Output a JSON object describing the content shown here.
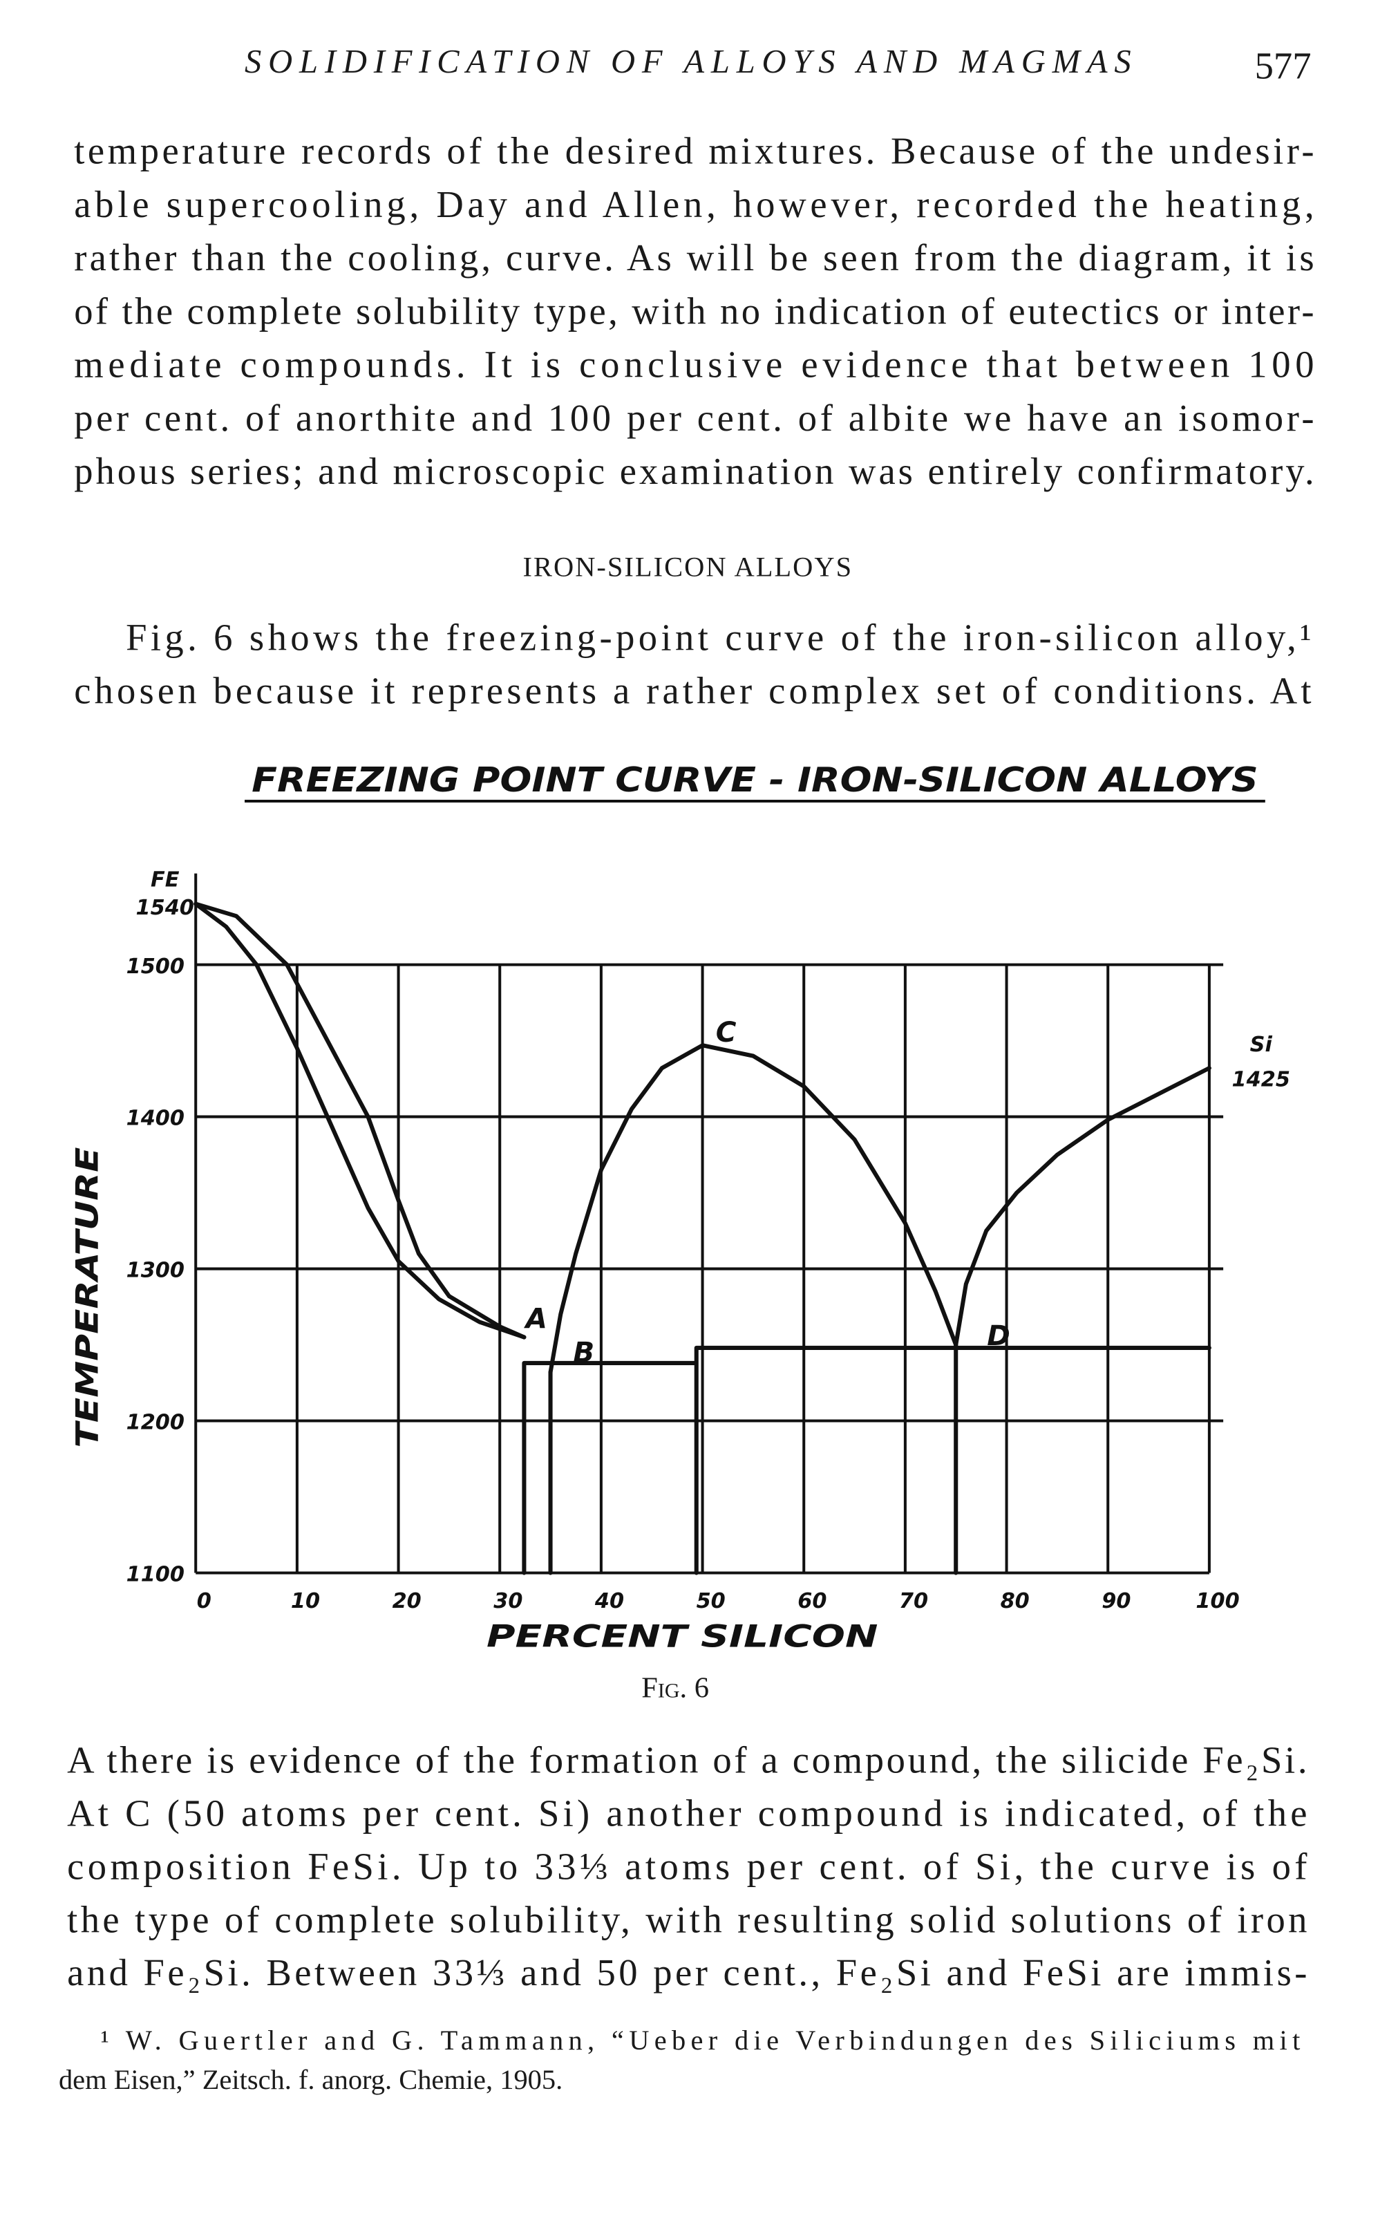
{
  "header": {
    "running_title": "SOLIDIFICATION OF ALLOYS AND MAGMAS",
    "page_number": "577"
  },
  "paragraph_before": {
    "lines": [
      "temperature records of the desired mixtures. Because of the undesir-",
      "able supercooling, Day and Allen, however, recorded the heating,",
      "rather than the cooling, curve. As will be seen from the diagram, it is",
      "of the complete solubility type, with no indication of eutectics or inter-",
      "mediate compounds. It is conclusive evidence that between 100",
      "per cent. of anorthite and 100 per cent. of albite we have an isomor-",
      "phous series; and microscopic examination was entirely confirmatory."
    ]
  },
  "section_heading": "IRON-SILICON ALLOYS",
  "paragraph_intro": {
    "lines": [
      "Fig. 6 shows the freezing-point curve of the iron-silicon alloy,¹",
      "chosen because it represents a rather complex set of conditions. At"
    ]
  },
  "chart_data": {
    "type": "line",
    "title": "FREEZING POINT CURVE - IRON-SILICON ALLOYS",
    "xlabel": "PERCENT SILICON",
    "ylabel": "TEMPERATURE",
    "xlim": [
      0,
      100
    ],
    "ylim": [
      1100,
      1560
    ],
    "xticks": [
      0,
      10,
      20,
      30,
      40,
      50,
      60,
      70,
      80,
      90,
      100
    ],
    "yticks": [
      1100,
      1200,
      1300,
      1400,
      1500
    ],
    "grid": true,
    "series": [
      {
        "color": "#111111",
        "x": [
          0,
          4,
          9,
          13,
          17,
          20,
          22,
          25,
          30,
          32.4
        ],
        "values": [
          1540,
          1532,
          1500,
          1450,
          1400,
          1345,
          1310,
          1282,
          1262,
          1255
        ]
      },
      {
        "color": "#111111",
        "x": [
          0,
          3,
          6,
          10,
          13,
          17,
          20,
          24,
          28,
          32.4
        ],
        "values": [
          1540,
          1525,
          1500,
          1445,
          1400,
          1340,
          1305,
          1280,
          1265,
          1255
        ]
      },
      {
        "color": "#111111",
        "x": [
          35,
          36,
          37.5,
          40,
          43,
          46,
          50,
          55,
          60,
          65,
          70,
          73,
          75
        ],
        "values": [
          1232,
          1270,
          1310,
          1365,
          1405,
          1432,
          1447,
          1440,
          1420,
          1385,
          1330,
          1285,
          1250
        ]
      },
      {
        "color": "#111111",
        "x": [
          75,
          76,
          78,
          81,
          85,
          90,
          95,
          100
        ],
        "values": [
          1250,
          1290,
          1325,
          1350,
          1375,
          1398,
          1415,
          1432
        ]
      },
      {
        "color": "#111111",
        "x": [
          32.4,
          32.4,
          49.4,
          49.4,
          100,
          null,
          49.4,
          49.4,
          null,
          35,
          35,
          null,
          75,
          75
        ],
        "values": [
          1100,
          1238,
          1238,
          1248,
          1248,
          null,
          1238,
          1100,
          null,
          1100,
          1232,
          null,
          1100,
          1250
        ]
      }
    ],
    "annotations": [
      {
        "text": "FE",
        "value": 1540
      },
      {
        "text": "Si",
        "value": 1425
      }
    ],
    "point_labels": [
      "A",
      "B",
      "C",
      "D"
    ]
  },
  "figure_caption": "Fig. 6",
  "paragraph_after": {
    "lines": [
      "A there is evidence of the formation of a compound, the silicide Fe₂Si.",
      "At C (50 atoms per cent. Si) another compound is indicated, of the",
      "composition FeSi. Up to 33⅓ atoms per cent. of Si, the curve is of",
      "the type of complete solubility, with resulting solid solutions of iron",
      "and Fe₂Si. Between 33⅓ and 50 per cent., Fe₂Si and FeSi are immis-"
    ]
  },
  "footnote": {
    "lines": [
      "¹ W. Guertler and G. Tammann, “Ueber die Verbindungen des Siliciums mit",
      "dem Eisen,” Zeitsch. f. anorg. Chemie, 1905."
    ]
  }
}
